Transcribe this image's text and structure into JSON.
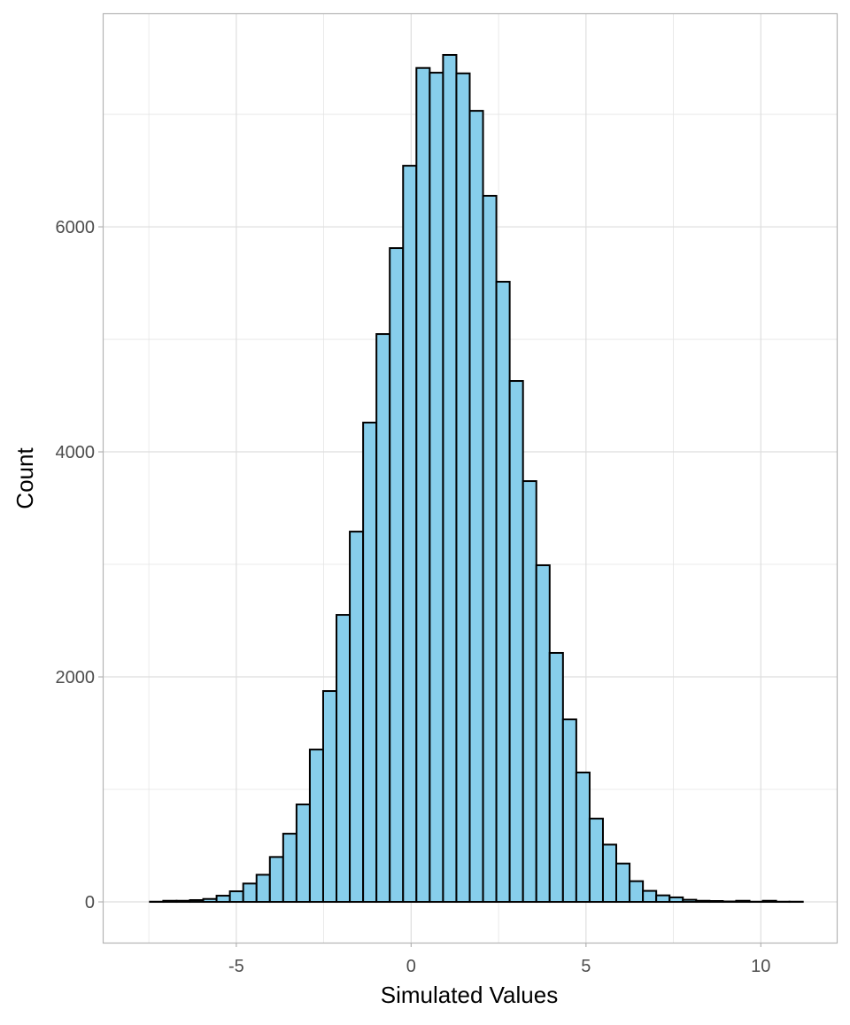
{
  "chart_data": {
    "type": "bar",
    "subtype": "histogram",
    "title": "",
    "xlabel": "Simulated Values",
    "ylabel": "Count",
    "xlim": [
      -8.82,
      12.17
    ],
    "ylim": [
      -362,
      7898
    ],
    "x_ticks": [
      -5,
      0,
      5,
      10
    ],
    "x_tick_labels": [
      "-5",
      "0",
      "5",
      "10"
    ],
    "x_minor_ticks": [
      -7.5,
      -2.5,
      2.5,
      7.5
    ],
    "y_ticks": [
      0,
      2000,
      4000,
      6000
    ],
    "y_tick_labels": [
      "0",
      "2000",
      "4000",
      "6000"
    ],
    "y_minor_ticks": [
      1000,
      3000,
      5000,
      7000
    ],
    "grid": true,
    "bin_start": -7.85,
    "bin_width": 0.381,
    "counts": [
      0,
      2,
      10,
      10,
      16,
      26,
      55,
      94,
      163,
      241,
      399,
      606,
      866,
      1354,
      1874,
      2551,
      3291,
      4260,
      5047,
      5811,
      6543,
      7412,
      7370,
      7528,
      7364,
      7031,
      6276,
      5512,
      4630,
      3740,
      2992,
      2213,
      1622,
      1150,
      740,
      509,
      341,
      184,
      98,
      58,
      40,
      19,
      10,
      8,
      4,
      10,
      2,
      10,
      2,
      2
    ],
    "colors": {
      "fill": "#87CEEB",
      "outline": "#000000",
      "grid": "#e5e5e5",
      "border": "#b3b3b3",
      "tick_text": "#4d4d4d"
    }
  }
}
